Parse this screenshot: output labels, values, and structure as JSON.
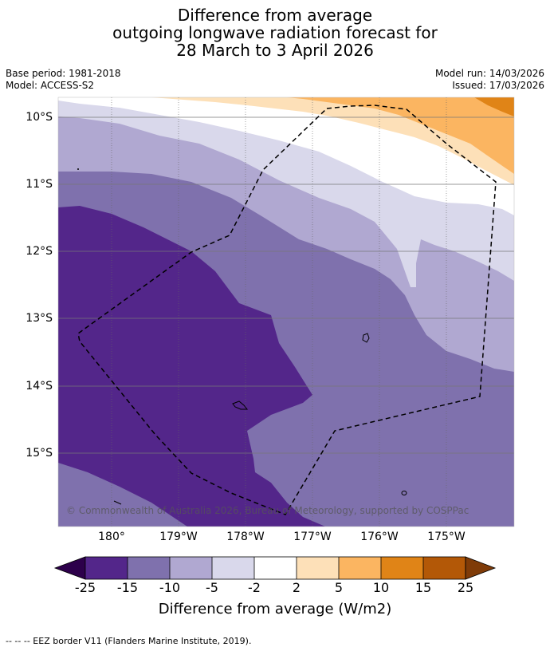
{
  "header": {
    "title_line1": "Difference from average",
    "title_line2": "outgoing longwave radiation forecast for",
    "title_line3": "28 March to 3 April 2026",
    "base_period": "Base period: 1981-2018",
    "model": "Model: ACCESS-S2",
    "model_run": "Model run: 14/03/2026",
    "issued": "Issued: 17/03/2026"
  },
  "map": {
    "lat_labels": [
      "10°S",
      "11°S",
      "12°S",
      "13°S",
      "14°S",
      "15°S"
    ],
    "lon_labels": [
      "180°",
      "179°W",
      "178°W",
      "177°W",
      "176°W",
      "175°W"
    ],
    "copyright": "© Commonwealth of Australia 2026, Bureau of Meteorology, supported by COSPPac",
    "colors": {
      "c_m25_m15": "#53268a",
      "c_m15_m10": "#7f71ad",
      "c_m10_m5": "#b0a8d1",
      "c_m5_m2": "#d9d8eb",
      "c_m2_2": "#ffffff",
      "c_2_5": "#fde0b8",
      "c_5_10": "#fbb561",
      "c_10_15": "#e08417",
      "c_15_25": "#b35807",
      "c_lt_m25": "#2d004b",
      "c_gt_25": "#7f3b08"
    }
  },
  "colorbar": {
    "ticks": [
      "-25",
      "-15",
      "-10",
      "-5",
      "-2",
      "2",
      "5",
      "10",
      "15",
      "25"
    ],
    "label": "Difference from average (W/m2)"
  },
  "footnote": "-- -- -- EEZ border V11 (Flanders Marine Institute, 2019)."
}
